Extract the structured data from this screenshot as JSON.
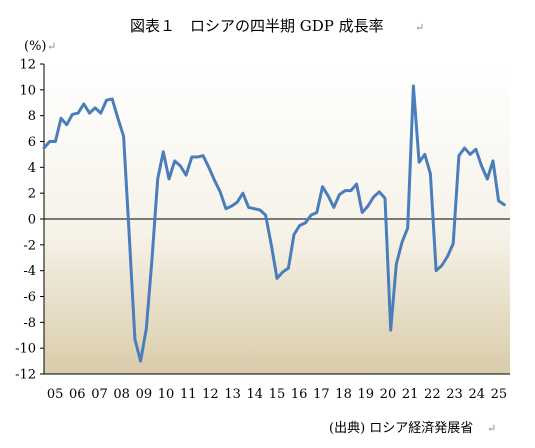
{
  "chart_data": {
    "type": "line",
    "title": "図表１　ロシアの四半期 GDP 成長率",
    "ylabel": "(%)",
    "xlabel": "",
    "source": "(出典) ロシア経済発展省",
    "ylim": [
      -12,
      12
    ],
    "yticks": [
      12,
      10,
      8,
      6,
      4,
      2,
      0,
      -2,
      -4,
      -6,
      -8,
      -10,
      -12
    ],
    "xlim": [
      2005.0,
      2025.5
    ],
    "xtick_labels": [
      "05",
      "06",
      "07",
      "08",
      "09",
      "10",
      "11",
      "12",
      "13",
      "14",
      "15",
      "16",
      "17",
      "18",
      "19",
      "20",
      "21",
      "22",
      "23",
      "24",
      "25"
    ],
    "grid": false,
    "line_color": "#4a7ebb",
    "plot_bg_top": "#ffffff",
    "plot_bg_bottom": "#d9ccaa",
    "series": [
      {
        "x": [
          2005.0,
          2005.25,
          2005.5,
          2005.75,
          2006.0,
          2006.25,
          2006.5,
          2006.75,
          2007.0,
          2007.25,
          2007.5,
          2007.75,
          2008.0,
          2008.25,
          2008.5,
          2008.75,
          2009.0,
          2009.25,
          2009.5,
          2009.75,
          2010.0,
          2010.25,
          2010.5,
          2010.75,
          2011.0,
          2011.25,
          2011.5,
          2011.75,
          2012.0,
          2012.25,
          2012.5,
          2012.75,
          2013.0,
          2013.25,
          2013.5,
          2013.75,
          2014.0,
          2014.25,
          2014.5,
          2014.75,
          2015.0,
          2015.25,
          2015.5,
          2015.75,
          2016.0,
          2016.25,
          2016.5,
          2016.75,
          2017.0,
          2017.25,
          2017.5,
          2017.75,
          2018.0,
          2018.25,
          2018.5,
          2018.75,
          2019.0,
          2019.25,
          2019.5,
          2019.75,
          2020.0,
          2020.25,
          2020.5,
          2020.75,
          2021.0,
          2021.25,
          2021.5,
          2021.75,
          2022.0,
          2022.25,
          2022.5,
          2022.75,
          2023.0,
          2023.25,
          2023.5,
          2023.75,
          2024.0,
          2024.25,
          2024.5,
          2024.75,
          2025.0,
          2025.25
        ],
        "values": [
          5.5,
          6.0,
          6.0,
          7.8,
          7.3,
          8.1,
          8.2,
          8.9,
          8.2,
          8.6,
          8.2,
          9.2,
          9.3,
          7.8,
          6.4,
          -1.2,
          -9.3,
          -11.0,
          -8.5,
          -3.1,
          3.1,
          5.2,
          3.1,
          4.5,
          4.1,
          3.4,
          4.8,
          4.8,
          4.9,
          4.0,
          3.0,
          2.1,
          0.8,
          1.0,
          1.3,
          2.0,
          0.9,
          0.8,
          0.7,
          0.3,
          -2.0,
          -4.6,
          -4.1,
          -3.8,
          -1.2,
          -0.5,
          -0.3,
          0.3,
          0.5,
          2.5,
          1.8,
          0.9,
          1.9,
          2.2,
          2.2,
          2.7,
          0.5,
          1.0,
          1.7,
          2.1,
          1.6,
          -8.6,
          -3.5,
          -1.8,
          -0.7,
          10.3,
          4.4,
          5.0,
          3.5,
          -4.0,
          -3.6,
          -2.9,
          -1.9,
          4.9,
          5.5,
          5.0,
          5.4,
          4.1,
          3.1,
          4.5,
          1.4,
          1.1
        ]
      }
    ]
  }
}
